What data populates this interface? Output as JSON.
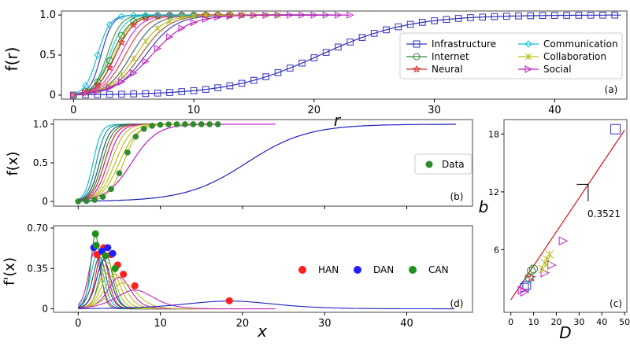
{
  "chart_data": [
    {
      "panel": "(a)",
      "type": "line",
      "xlabel": "r",
      "ylabel": "f(r)",
      "xlim": [
        -1,
        46
      ],
      "ylim": [
        -0.05,
        1.05
      ],
      "xticks": [
        "0",
        "10",
        "20",
        "30",
        "40"
      ],
      "yticks": [
        "0",
        "0.5",
        "1.0"
      ],
      "series": [
        {
          "name": "Infrastructure",
          "color": "#2f2fbf",
          "marker": "square",
          "params": {
            "x0": 20.5,
            "k": 0.27,
            "xmax": 45.5
          }
        },
        {
          "name": "Internet",
          "color": "#2e8b2e",
          "marker": "circle",
          "params": {
            "x0": 3.2,
            "k": 1.35,
            "xmax": 13
          }
        },
        {
          "name": "Neural",
          "color": "#d62728",
          "marker": "star",
          "params": {
            "x0": 3.5,
            "k": 1.3,
            "xmax": 14
          }
        },
        {
          "name": "Communication",
          "color": "#17becf",
          "marker": "diamond",
          "params": {
            "x0": 2.0,
            "k": 2.0,
            "xmax": 10
          }
        },
        {
          "name": "Collaboration",
          "color": "#bcbd22",
          "marker": "x",
          "params": {
            "x0": 5.2,
            "k": 0.9,
            "xmax": 17
          }
        },
        {
          "name": "Social",
          "color": "#c020c0",
          "marker": "triangle-right",
          "params": {
            "x0": 6.5,
            "k": 0.65,
            "xmax": 23
          }
        }
      ],
      "panel_label": "(a)"
    },
    {
      "panel": "(b)",
      "type": "line",
      "xlabel": "",
      "ylabel": "f(x)",
      "xlim": [
        -3,
        48
      ],
      "ylim": [
        -0.06,
        1.06
      ],
      "yticks": [
        "0",
        "0.5",
        "1.0"
      ],
      "legend": [
        "Data"
      ],
      "data_points": {
        "x": [
          0,
          1,
          2,
          3,
          4,
          5,
          6,
          7,
          8,
          9,
          10,
          11,
          12,
          13,
          14,
          15,
          16,
          17
        ],
        "color": "#2e8b2e"
      },
      "fit_params": {
        "x0": 5.5,
        "k": 1.1
      },
      "panel_label": "(b)"
    },
    {
      "panel": "(d)",
      "type": "scatter",
      "xlabel": "x",
      "ylabel": "f'(x)",
      "xlim": [
        -3,
        48
      ],
      "ylim": [
        -0.03,
        0.72
      ],
      "xticks": [
        "0",
        "10",
        "20",
        "30",
        "40"
      ],
      "yticks": [
        "0",
        "0.35",
        "0.70"
      ],
      "legend": [
        "HAN",
        "DAN",
        "CAN"
      ],
      "legend_colors": [
        "#ff1f1f",
        "#1f1fff",
        "#1f8f1f"
      ],
      "peaks": {
        "HAN": [
          [
            2.3,
            0.47
          ],
          [
            3.1,
            0.53
          ],
          [
            4.0,
            0.47
          ],
          [
            4.8,
            0.38
          ],
          [
            5.5,
            0.3
          ],
          [
            6.9,
            0.2
          ],
          [
            18.4,
            0.07
          ]
        ],
        "DAN": [
          [
            1.9,
            0.53
          ],
          [
            2.9,
            0.5
          ],
          [
            3.6,
            0.53
          ],
          [
            4.2,
            0.48
          ]
        ],
        "CAN": [
          [
            2.1,
            0.65
          ],
          [
            2.2,
            0.55
          ],
          [
            3.3,
            0.46
          ],
          [
            4.5,
            0.35
          ]
        ]
      },
      "panel_label": "(d)"
    },
    {
      "panel": "(c)",
      "type": "scatter",
      "xlabel": "D",
      "ylabel": "b",
      "xlim": [
        -3,
        51
      ],
      "ylim": [
        -0.5,
        19.5
      ],
      "xticks": [
        "0",
        "10",
        "20",
        "30",
        "40",
        "50"
      ],
      "yticks": [
        "6",
        "12",
        "18"
      ],
      "fit_line": {
        "slope": 0.3521,
        "intercept": 0.8,
        "color": "#e01010"
      },
      "slope_label": "0.3521",
      "points": [
        {
          "D": 46,
          "b": 18.5,
          "marker": "square",
          "color": "#2f2fbf"
        },
        {
          "D": 10,
          "b": 4.0,
          "marker": "circle",
          "color": "#2e8b2e"
        },
        {
          "D": 9,
          "b": 3.8,
          "marker": "circle",
          "color": "#2e8b2e"
        },
        {
          "D": 8,
          "b": 3.1,
          "marker": "circle",
          "color": "#2e8b2e"
        },
        {
          "D": 23,
          "b": 6.9,
          "marker": "triangle-right",
          "color": "#c020c0"
        },
        {
          "D": 18,
          "b": 4.4,
          "marker": "triangle-right",
          "color": "#c020c0"
        },
        {
          "D": 15,
          "b": 3.6,
          "marker": "triangle-right",
          "color": "#c020c0"
        },
        {
          "D": 17,
          "b": 5.5,
          "marker": "x",
          "color": "#bcbd22"
        },
        {
          "D": 16,
          "b": 5.0,
          "marker": "x",
          "color": "#bcbd22"
        },
        {
          "D": 15,
          "b": 4.6,
          "marker": "x",
          "color": "#bcbd22"
        },
        {
          "D": 14,
          "b": 4.0,
          "marker": "x",
          "color": "#bcbd22"
        },
        {
          "D": 6,
          "b": 2.1,
          "marker": "square",
          "color": "#2f2fbf"
        },
        {
          "D": 7,
          "b": 2.3,
          "marker": "square",
          "color": "#2f2fbf"
        },
        {
          "D": 8,
          "b": 2.9,
          "marker": "diamond",
          "color": "#17becf"
        },
        {
          "D": 9,
          "b": 3.1,
          "marker": "star",
          "color": "#d62728"
        },
        {
          "D": 5,
          "b": 1.8,
          "marker": "triangle-right",
          "color": "#c020c0"
        },
        {
          "D": 6,
          "b": 1.6,
          "marker": "triangle-right",
          "color": "#c020c0"
        }
      ],
      "panel_label": "(c)"
    }
  ],
  "colors": {
    "axis": "#000000",
    "frame": "#555555",
    "extra_curves": [
      "#1f1fbf",
      "#2e8b2e",
      "#17becf",
      "#bcbd22",
      "#c020c0",
      "#d62728",
      "#2f4f6f",
      "#8b4513"
    ]
  }
}
